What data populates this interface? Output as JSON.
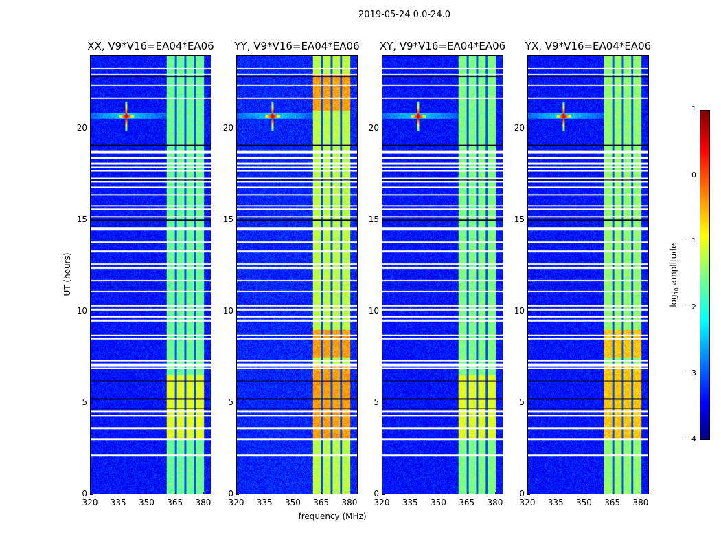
{
  "figure_title": "2019-05-24 0.0-24.0",
  "chart_data": {
    "type": "heatmap",
    "xlabel": "frequency (MHz)",
    "ylabel": "UT (hours)",
    "xlim": [
      320,
      384.4
    ],
    "ylim": [
      0,
      24
    ],
    "xticks": [
      "320",
      "335",
      "350",
      "365",
      "380"
    ],
    "xtick_values": [
      320,
      335,
      350,
      365,
      380
    ],
    "yticks": [
      "0",
      "5",
      "10",
      "15",
      "20"
    ],
    "ytick_values": [
      0,
      5,
      10,
      15,
      20
    ],
    "colorbar": {
      "label_prefix": "log",
      "label_sub": "10",
      "label_suffix": " amplitude",
      "range": [
        -4,
        1
      ],
      "ticks": [
        "1",
        "0",
        "−1",
        "−2",
        "−3",
        "−4"
      ],
      "tick_values": [
        1,
        0,
        -1,
        -2,
        -3,
        -4
      ],
      "colormap": "jet"
    },
    "bright_band_mhz": [
      360.7,
      380.4
    ],
    "band_notches_mhz": [
      365.5,
      370.5,
      375.6
    ],
    "rfi_spike": {
      "freq_mhz": 339,
      "ut_hours": 20.7
    },
    "flagged_rows_hours": [
      23.3,
      23.0,
      22.4,
      21.7,
      18.8,
      18.7,
      18.4,
      18.1,
      17.9,
      17.7,
      17.3,
      17.1,
      16.8,
      16.4,
      15.8,
      15.6,
      15.2,
      14.6,
      14.5,
      13.8,
      13.3,
      12.6,
      12.4,
      11.7,
      11.1,
      10.3,
      10.1,
      9.7,
      9.5,
      8.7,
      8.5,
      7.3,
      7.1,
      7.0,
      6.9,
      4.5,
      4.3,
      3.6,
      3.0,
      2.1
    ],
    "dark_rows_hours": [
      22.9,
      19.1,
      17.2,
      15.0,
      6.2,
      5.2,
      4.7
    ],
    "panels": [
      {
        "title": "XX, V9*V16=EA04*EA06",
        "background_log_amp": -3.3,
        "band_log_amp": -1.6,
        "hot_intervals_hours": [
          [
            3,
            6.5
          ]
        ],
        "hot_log_amp": -1.0
      },
      {
        "title": "YY, V9*V16=EA04*EA06",
        "background_log_amp": -3.2,
        "band_log_amp": -1.2,
        "hot_intervals_hours": [
          [
            3,
            7
          ],
          [
            7.5,
            9
          ],
          [
            21,
            23
          ]
        ],
        "hot_log_amp": -0.4
      },
      {
        "title": "XY, V9*V16=EA04*EA06",
        "background_log_amp": -3.3,
        "band_log_amp": -1.5,
        "hot_intervals_hours": [
          [
            3,
            6.5
          ]
        ],
        "hot_log_amp": -1.0
      },
      {
        "title": "YX, V9*V16=EA04*EA06",
        "background_log_amp": -3.3,
        "band_log_amp": -1.4,
        "hot_intervals_hours": [
          [
            3,
            7
          ],
          [
            7.5,
            9
          ]
        ],
        "hot_log_amp": -0.6
      }
    ]
  }
}
